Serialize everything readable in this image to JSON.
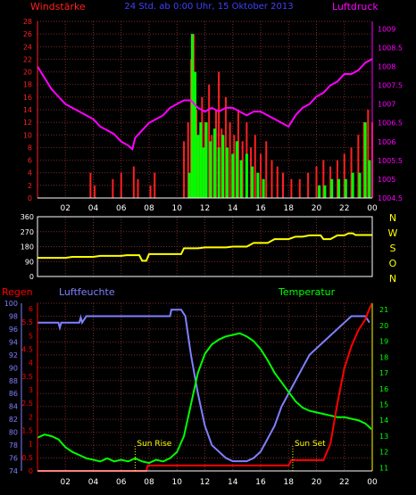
{
  "colors": {
    "wind_gust": "#ff2020",
    "wind_avg": "#00ff00",
    "pressure": "#ff00ff",
    "direction": "#ffff00",
    "humidity": "#8080ff",
    "temperature": "#00ff00",
    "rain": "#ff0000",
    "title": "#4040ff",
    "annot": "#ffff00",
    "axis_white": "#ffffff"
  },
  "chart_data": [
    {
      "type": "bar",
      "title": "24 Std. ab 0:00 Uhr, 15 Oktober 2013",
      "ylabel_left": "Windstärke",
      "ylabel_right": "Luftdruck",
      "x_ticks": [
        "02",
        "04",
        "06",
        "08",
        "10",
        "12",
        "14",
        "16",
        "18",
        "20",
        "22",
        "00"
      ],
      "y_left_ticks": [
        "0",
        "2",
        "4",
        "6",
        "8",
        "10",
        "12",
        "14",
        "16",
        "18",
        "20",
        "22",
        "24",
        "26",
        "28"
      ],
      "y_right_ticks": [
        "1004.5",
        "1005",
        "1005.5",
        "1006",
        "1006.5",
        "1007",
        "1007.5",
        "1008",
        "1008.5",
        "1009"
      ],
      "ylim_left": [
        0,
        28
      ],
      "ylim_right": [
        1004.5,
        1009.2
      ],
      "x_range_hours": [
        0,
        24
      ],
      "gusts": [
        [
          3.8,
          4
        ],
        [
          4.1,
          2
        ],
        [
          5.4,
          3
        ],
        [
          6.0,
          4
        ],
        [
          6.9,
          5
        ],
        [
          7.2,
          3
        ],
        [
          8.1,
          2
        ],
        [
          8.4,
          4
        ],
        [
          10.5,
          9
        ],
        [
          10.8,
          12
        ],
        [
          11.0,
          22
        ],
        [
          11.2,
          26
        ],
        [
          11.4,
          14
        ],
        [
          11.6,
          10
        ],
        [
          11.8,
          16
        ],
        [
          12.0,
          12
        ],
        [
          12.3,
          18
        ],
        [
          12.5,
          10
        ],
        [
          12.8,
          14
        ],
        [
          13.0,
          20
        ],
        [
          13.2,
          11
        ],
        [
          13.5,
          16
        ],
        [
          13.8,
          12
        ],
        [
          14.1,
          10
        ],
        [
          14.4,
          14
        ],
        [
          14.7,
          9
        ],
        [
          15.0,
          12
        ],
        [
          15.3,
          8
        ],
        [
          15.6,
          10
        ],
        [
          16.0,
          7
        ],
        [
          16.4,
          9
        ],
        [
          16.8,
          6
        ],
        [
          17.2,
          5
        ],
        [
          17.6,
          4
        ],
        [
          18.2,
          3
        ],
        [
          18.8,
          3
        ],
        [
          19.4,
          4
        ],
        [
          20.0,
          5
        ],
        [
          20.5,
          6
        ],
        [
          21.0,
          5
        ],
        [
          21.5,
          6
        ],
        [
          22.0,
          7
        ],
        [
          22.5,
          8
        ],
        [
          23.0,
          10
        ],
        [
          23.4,
          12
        ],
        [
          23.7,
          14
        ],
        [
          24.0,
          12
        ]
      ],
      "avg_wind": [
        [
          10.9,
          4
        ],
        [
          11.1,
          26
        ],
        [
          11.3,
          20
        ],
        [
          11.5,
          10
        ],
        [
          11.7,
          12
        ],
        [
          11.9,
          8
        ],
        [
          12.1,
          12
        ],
        [
          12.4,
          9
        ],
        [
          12.7,
          11
        ],
        [
          13.0,
          8
        ],
        [
          13.3,
          10
        ],
        [
          13.6,
          8
        ],
        [
          14.0,
          7
        ],
        [
          14.3,
          9
        ],
        [
          14.6,
          6
        ],
        [
          15.0,
          7
        ],
        [
          15.4,
          5
        ],
        [
          15.8,
          4
        ],
        [
          16.2,
          3
        ],
        [
          20.2,
          2
        ],
        [
          20.6,
          2
        ],
        [
          21.1,
          3
        ],
        [
          21.6,
          3
        ],
        [
          22.1,
          3
        ],
        [
          22.6,
          4
        ],
        [
          23.1,
          4
        ],
        [
          23.5,
          12
        ],
        [
          23.8,
          6
        ]
      ],
      "pressure": [
        [
          0,
          1008.0
        ],
        [
          0.5,
          1007.7
        ],
        [
          1.0,
          1007.4
        ],
        [
          1.5,
          1007.2
        ],
        [
          2.0,
          1007.0
        ],
        [
          2.5,
          1006.9
        ],
        [
          3.0,
          1006.8
        ],
        [
          3.5,
          1006.7
        ],
        [
          4.0,
          1006.6
        ],
        [
          4.5,
          1006.4
        ],
        [
          5.0,
          1006.3
        ],
        [
          5.5,
          1006.2
        ],
        [
          6.0,
          1006.0
        ],
        [
          6.5,
          1005.9
        ],
        [
          6.8,
          1005.8
        ],
        [
          7.0,
          1006.1
        ],
        [
          7.5,
          1006.3
        ],
        [
          8.0,
          1006.5
        ],
        [
          8.5,
          1006.6
        ],
        [
          9.0,
          1006.7
        ],
        [
          9.5,
          1006.9
        ],
        [
          10.0,
          1007.0
        ],
        [
          10.5,
          1007.1
        ],
        [
          11.0,
          1007.1
        ],
        [
          11.5,
          1006.9
        ],
        [
          12.0,
          1006.8
        ],
        [
          12.5,
          1006.9
        ],
        [
          13.0,
          1006.8
        ],
        [
          13.5,
          1006.9
        ],
        [
          14.0,
          1006.9
        ],
        [
          14.5,
          1006.8
        ],
        [
          15.0,
          1006.7
        ],
        [
          15.5,
          1006.8
        ],
        [
          16.0,
          1006.8
        ],
        [
          16.5,
          1006.7
        ],
        [
          17.0,
          1006.6
        ],
        [
          17.5,
          1006.5
        ],
        [
          18.0,
          1006.4
        ],
        [
          18.5,
          1006.7
        ],
        [
          19.0,
          1006.9
        ],
        [
          19.5,
          1007.0
        ],
        [
          20.0,
          1007.2
        ],
        [
          20.5,
          1007.3
        ],
        [
          21.0,
          1007.5
        ],
        [
          21.5,
          1007.6
        ],
        [
          22.0,
          1007.8
        ],
        [
          22.5,
          1007.8
        ],
        [
          23.0,
          1007.9
        ],
        [
          23.5,
          1008.1
        ],
        [
          24.0,
          1008.2
        ]
      ]
    },
    {
      "type": "line",
      "ylabel_right": "N W S O N",
      "y_ticks": [
        "0",
        "90",
        "180",
        "270",
        "360"
      ],
      "ylim": [
        0,
        360
      ],
      "x_ticks": [
        "02",
        "04",
        "06",
        "08",
        "10",
        "12",
        "14",
        "16",
        "18",
        "20",
        "22",
        "00"
      ],
      "x_range_hours": [
        0,
        24
      ],
      "direction": [
        [
          0,
          112
        ],
        [
          2,
          112
        ],
        [
          2.5,
          118
        ],
        [
          4,
          118
        ],
        [
          4.5,
          124
        ],
        [
          6,
          124
        ],
        [
          6.4,
          128
        ],
        [
          7.3,
          128
        ],
        [
          7.5,
          95
        ],
        [
          7.8,
          95
        ],
        [
          8.0,
          135
        ],
        [
          10.3,
          135
        ],
        [
          10.5,
          170
        ],
        [
          11.5,
          170
        ],
        [
          12.0,
          175
        ],
        [
          13.5,
          175
        ],
        [
          14.0,
          180
        ],
        [
          15.0,
          180
        ],
        [
          15.5,
          202
        ],
        [
          16.5,
          202
        ],
        [
          17.0,
          225
        ],
        [
          18.0,
          225
        ],
        [
          18.5,
          240
        ],
        [
          19.0,
          240
        ],
        [
          19.5,
          248
        ],
        [
          20.0,
          248
        ],
        [
          20.3,
          248
        ],
        [
          20.5,
          225
        ],
        [
          21.0,
          225
        ],
        [
          21.5,
          248
        ],
        [
          22.0,
          248
        ],
        [
          22.3,
          260
        ],
        [
          22.6,
          260
        ],
        [
          22.8,
          250
        ],
        [
          24,
          250
        ]
      ]
    },
    {
      "type": "line",
      "label_left_outer": "Regen",
      "label_left_inner": "Luftfeuchte",
      "label_right": "Temperatur",
      "x_ticks": [
        "02",
        "04",
        "06",
        "08",
        "10",
        "12",
        "14",
        "16",
        "18",
        "20",
        "22",
        "00"
      ],
      "x_range_hours": [
        0,
        24
      ],
      "humidity_ticks": [
        "74",
        "76",
        "78",
        "80",
        "82",
        "84",
        "86",
        "88",
        "90",
        "92",
        "94",
        "96",
        "98",
        "100"
      ],
      "rain_ticks": [
        "0",
        "0.5",
        "1",
        "1.5",
        "2",
        "2.5",
        "3",
        "3.5",
        "4",
        "4.5",
        "5",
        "5.5",
        "6"
      ],
      "temp_ticks": [
        "11",
        "12",
        "13",
        "14",
        "15",
        "16",
        "17",
        "18",
        "19",
        "20",
        "21"
      ],
      "humidity_ylim": [
        74,
        100
      ],
      "rain_ylim": [
        0,
        6.2
      ],
      "temp_ylim": [
        10.8,
        21.4
      ],
      "annotations": [
        {
          "text": "Sun Rise",
          "hour": 7.0
        },
        {
          "text": "Sun Set",
          "hour": 18.3
        }
      ],
      "humidity": [
        [
          0,
          97
        ],
        [
          1.5,
          97
        ],
        [
          1.6,
          96.2
        ],
        [
          1.7,
          97
        ],
        [
          3.0,
          97
        ],
        [
          3.1,
          97.8
        ],
        [
          3.2,
          97
        ],
        [
          3.5,
          98
        ],
        [
          6.0,
          98
        ],
        [
          8.0,
          98
        ],
        [
          9.5,
          98
        ],
        [
          9.6,
          99
        ],
        [
          10.3,
          99
        ],
        [
          10.6,
          98
        ],
        [
          11.0,
          92
        ],
        [
          11.5,
          86
        ],
        [
          12.0,
          81
        ],
        [
          12.5,
          78
        ],
        [
          13.0,
          77
        ],
        [
          13.5,
          76
        ],
        [
          14.0,
          75.5
        ],
        [
          15.0,
          75.5
        ],
        [
          15.5,
          76
        ],
        [
          16.0,
          77
        ],
        [
          16.5,
          79
        ],
        [
          17.0,
          81
        ],
        [
          17.5,
          84
        ],
        [
          18.0,
          86
        ],
        [
          18.5,
          88
        ],
        [
          19.0,
          90
        ],
        [
          19.5,
          92
        ],
        [
          20.0,
          93
        ],
        [
          20.5,
          94
        ],
        [
          21.0,
          95
        ],
        [
          21.5,
          96
        ],
        [
          22.0,
          97
        ],
        [
          22.5,
          98
        ],
        [
          23.0,
          98
        ],
        [
          23.5,
          98
        ],
        [
          23.8,
          97
        ]
      ],
      "temperature": [
        [
          0,
          12.9
        ],
        [
          0.5,
          13.1
        ],
        [
          1.0,
          13.0
        ],
        [
          1.5,
          12.8
        ],
        [
          2.0,
          12.3
        ],
        [
          2.5,
          12.0
        ],
        [
          3.0,
          11.8
        ],
        [
          3.5,
          11.6
        ],
        [
          4.0,
          11.5
        ],
        [
          4.5,
          11.4
        ],
        [
          5.0,
          11.6
        ],
        [
          5.5,
          11.4
        ],
        [
          6.0,
          11.5
        ],
        [
          6.5,
          11.4
        ],
        [
          7.0,
          11.6
        ],
        [
          7.5,
          11.4
        ],
        [
          8.0,
          11.3
        ],
        [
          8.5,
          11.5
        ],
        [
          9.0,
          11.4
        ],
        [
          9.5,
          11.6
        ],
        [
          10.0,
          12.0
        ],
        [
          10.5,
          13.0
        ],
        [
          11.0,
          15.0
        ],
        [
          11.5,
          17.0
        ],
        [
          12.0,
          18.2
        ],
        [
          12.5,
          18.8
        ],
        [
          13.0,
          19.1
        ],
        [
          13.5,
          19.3
        ],
        [
          14.0,
          19.4
        ],
        [
          14.5,
          19.5
        ],
        [
          15.0,
          19.3
        ],
        [
          15.5,
          19.0
        ],
        [
          16.0,
          18.5
        ],
        [
          16.5,
          17.8
        ],
        [
          17.0,
          17.0
        ],
        [
          17.5,
          16.4
        ],
        [
          18.0,
          15.8
        ],
        [
          18.5,
          15.2
        ],
        [
          19.0,
          14.8
        ],
        [
          19.5,
          14.6
        ],
        [
          20.0,
          14.5
        ],
        [
          20.5,
          14.4
        ],
        [
          21.0,
          14.3
        ],
        [
          21.5,
          14.2
        ],
        [
          22.0,
          14.2
        ],
        [
          22.5,
          14.1
        ],
        [
          23.0,
          14.0
        ],
        [
          23.5,
          13.8
        ],
        [
          24.0,
          13.4
        ]
      ],
      "rain": [
        [
          0,
          0
        ],
        [
          7.8,
          0
        ],
        [
          7.9,
          0.2
        ],
        [
          18.0,
          0.2
        ],
        [
          18.2,
          0.4
        ],
        [
          20.5,
          0.4
        ],
        [
          21.0,
          1.0
        ],
        [
          21.5,
          2.5
        ],
        [
          22.0,
          3.8
        ],
        [
          22.5,
          4.6
        ],
        [
          23.0,
          5.2
        ],
        [
          23.5,
          5.6
        ],
        [
          23.8,
          6.0
        ],
        [
          24.0,
          6.2
        ],
        [
          24.0,
          0
        ]
      ]
    }
  ]
}
